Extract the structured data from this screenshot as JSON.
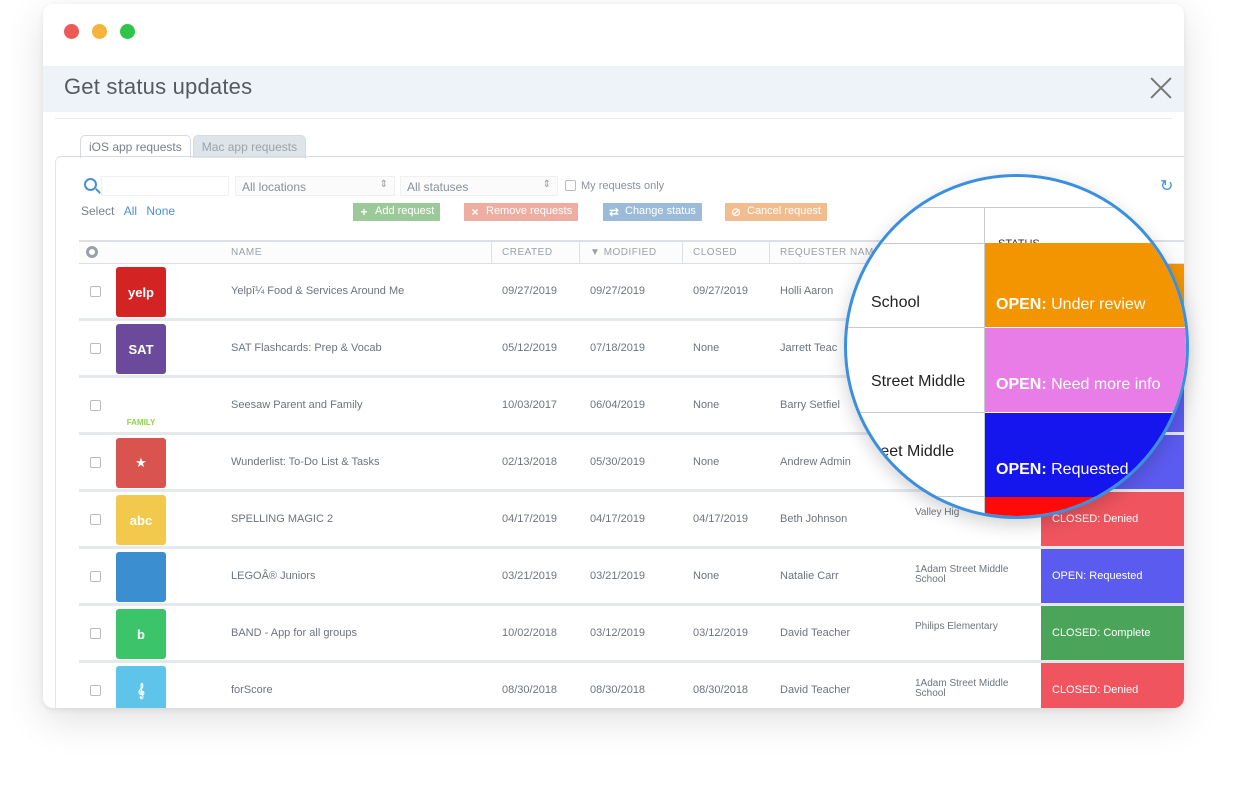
{
  "window": {
    "title": "Get status updates"
  },
  "tabs": [
    {
      "label": "iOS app requests"
    },
    {
      "label": "Mac app requests"
    }
  ],
  "filters": {
    "search_placeholder": "",
    "location_select": "All locations",
    "status_select": "All statuses",
    "my_requests_label": "My requests only"
  },
  "select_row": {
    "label": "Select",
    "all": "All",
    "none": "None"
  },
  "actions": {
    "add": "Add request",
    "remove": "Remove requests",
    "change": "Change status",
    "cancel": "Cancel request"
  },
  "columns": {
    "name": "NAME",
    "created": "CREATED",
    "modified": "MODIFIED",
    "closed": "CLOSED",
    "requester": "REQUESTER NAM",
    "status": "STATUS"
  },
  "rows": [
    {
      "icon": "yelp-icon",
      "icon_text": "yelp",
      "icon_color": "#d32323",
      "name": "Yelpî¼  Food & Services Around Me",
      "created": "09/27/2019",
      "modified": "09/27/2019",
      "closed": "09/27/2019",
      "requester": "Holli Aaron",
      "location": "",
      "status_prefix": "",
      "status_text": "",
      "status_color": "#f39500"
    },
    {
      "icon": "sat-flashcards-icon",
      "icon_text": "SAT",
      "icon_color": "#6b4a9c",
      "name": "SAT Flashcards: Prep & Vocab",
      "created": "05/12/2019",
      "modified": "07/18/2019",
      "closed": "None",
      "requester": "Jarrett Teac",
      "location": "",
      "status_prefix": "",
      "status_text": "",
      "status_color": "#e87de8"
    },
    {
      "icon": "seesaw-icon",
      "icon_text": "FAMILY",
      "icon_color": "#ffffff",
      "name": "Seesaw Parent and Family",
      "created": "10/03/2017",
      "modified": "06/04/2019",
      "closed": "None",
      "requester": "Barry Setfiel",
      "location": "",
      "status_prefix": "",
      "status_text": "",
      "status_color": "#5b5bf0"
    },
    {
      "icon": "wunderlist-icon",
      "icon_text": "★",
      "icon_color": "#d9534f",
      "name": "Wunderlist: To-Do List & Tasks",
      "created": "02/13/2018",
      "modified": "05/30/2019",
      "closed": "None",
      "requester": "Andrew Admin",
      "location": "",
      "status_prefix": "",
      "status_text": "",
      "status_color": "#5b5bf0"
    },
    {
      "icon": "spelling-magic-icon",
      "icon_text": "abc",
      "icon_color": "#f2c94c",
      "name": "SPELLING MAGIC 2",
      "created": "04/17/2019",
      "modified": "04/17/2019",
      "closed": "04/17/2019",
      "requester": "Beth Johnson",
      "location": "Valley Hig",
      "status_prefix": "CLOSED:",
      "status_text": "Denied",
      "status_color": "#f0555f"
    },
    {
      "icon": "lego-juniors-icon",
      "icon_text": "",
      "icon_color": "#3b8fd0",
      "name": "LEGOÂ® Juniors",
      "created": "03/21/2019",
      "modified": "03/21/2019",
      "closed": "None",
      "requester": "Natalie Carr",
      "location": "1Adam Street Middle School",
      "status_prefix": "OPEN:",
      "status_text": "Requested",
      "status_color": "#5b5bf0"
    },
    {
      "icon": "band-icon",
      "icon_text": "b",
      "icon_color": "#3cc46b",
      "name": "BAND - App for all groups",
      "created": "10/02/2018",
      "modified": "03/12/2019",
      "closed": "03/12/2019",
      "requester": "David Teacher",
      "location": "Philips Elementary",
      "status_prefix": "CLOSED:",
      "status_text": "Complete",
      "status_color": "#4aa45a"
    },
    {
      "icon": "forscore-icon",
      "icon_text": "𝄞",
      "icon_color": "#5ec4ea",
      "name": "forScore",
      "created": "08/30/2018",
      "modified": "08/30/2018",
      "closed": "08/30/2018",
      "requester": "David Teacher",
      "location": "1Adam Street Middle School",
      "status_prefix": "CLOSED:",
      "status_text": "Denied",
      "status_color": "#f0555f"
    }
  ],
  "magnifier": {
    "header": "STATUS",
    "rows": [
      {
        "location": "School",
        "status_prefix": "OPEN:",
        "status_text": "Under review",
        "color": "#f39500"
      },
      {
        "location": "Street Middle",
        "status_prefix": "OPEN:",
        "status_text": "Need more info",
        "color": "#e87de8"
      },
      {
        "location": "reet Middle",
        "status_prefix": "OPEN:",
        "status_text": "Requested",
        "color": "#1515ee"
      }
    ],
    "bottom_color": "#ff0a0a"
  }
}
